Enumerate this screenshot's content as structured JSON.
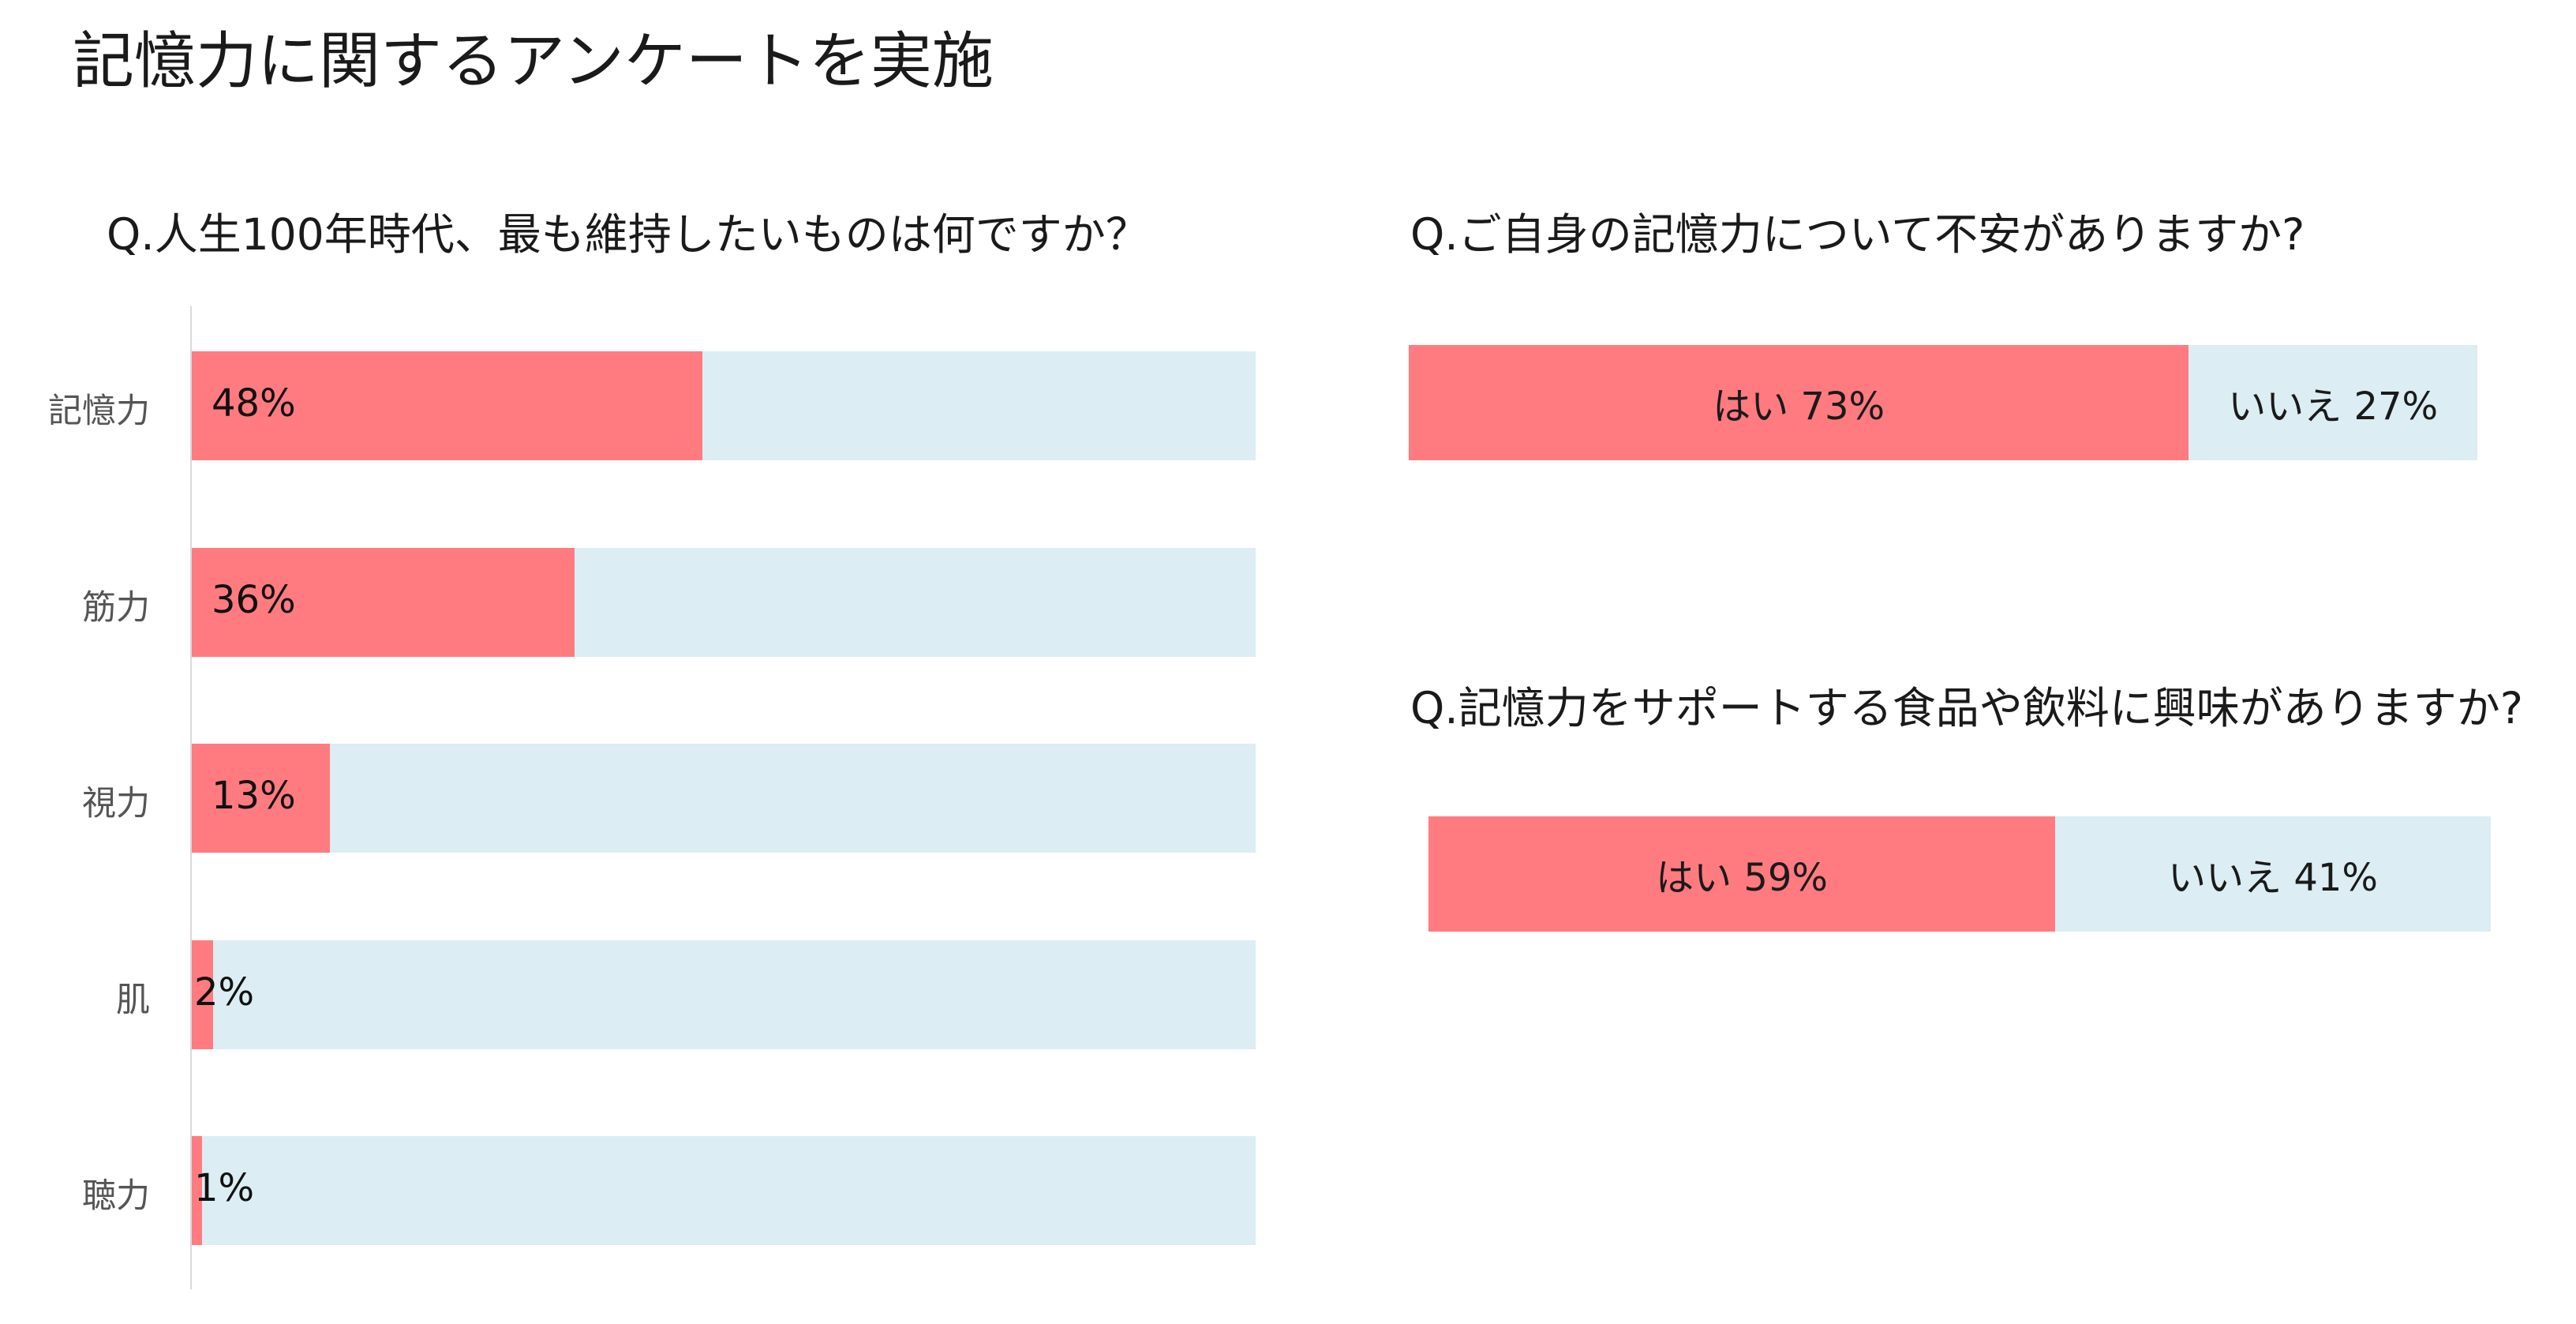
{
  "title": "記憶力に関するアンケートを実施",
  "colors": {
    "fill": "#ff7b80",
    "track": "#dcedf3"
  },
  "chart_data": [
    {
      "type": "bar",
      "orientation": "horizontal",
      "title": "Q.人生100年時代、最も維持したいものは何ですか？",
      "categories": [
        "記憶力",
        "筋力",
        "視力",
        "肌",
        "聴力"
      ],
      "values": [
        48,
        36,
        13,
        2,
        1
      ],
      "value_labels": [
        "48%",
        "36%",
        "13%",
        "2%",
        "1%"
      ],
      "xlim": [
        0,
        100
      ]
    },
    {
      "type": "bar",
      "stacked": true,
      "title": "Q.ご自身の記憶力について不安がありますか?",
      "series": [
        {
          "label": "はい 73%",
          "value": 73,
          "color": "#ff7b80"
        },
        {
          "label": "いいえ 27%",
          "value": 27,
          "color": "#dcedf3"
        }
      ]
    },
    {
      "type": "bar",
      "stacked": true,
      "title": "Q.記憶力をサポートする食品や飲料に興味がありますか?",
      "series": [
        {
          "label": "はい 59%",
          "value": 59,
          "color": "#ff7b80"
        },
        {
          "label": "いいえ 41%",
          "value": 41,
          "color": "#dcedf3"
        }
      ]
    }
  ]
}
